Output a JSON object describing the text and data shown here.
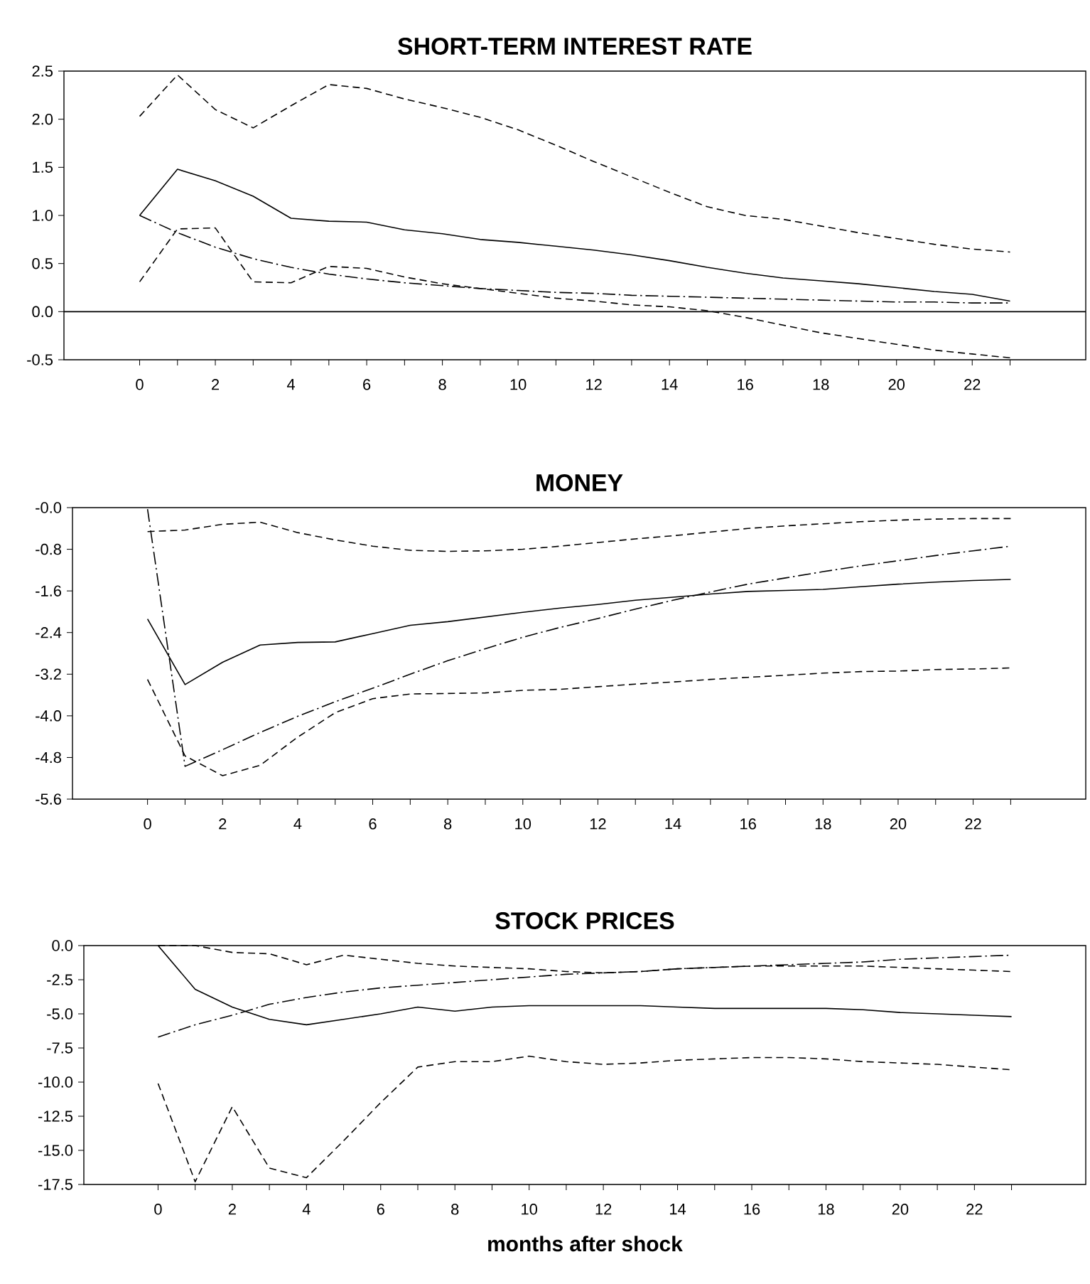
{
  "chart_data": [
    {
      "type": "line",
      "title": "SHORT-TERM INTEREST RATE",
      "x": [
        0,
        1,
        2,
        3,
        4,
        5,
        6,
        7,
        8,
        9,
        10,
        11,
        12,
        13,
        14,
        15,
        16,
        17,
        18,
        19,
        20,
        21,
        22,
        23
      ],
      "series": [
        {
          "color": "#000000",
          "line_style": "solid",
          "values": [
            1.0,
            1.48,
            1.36,
            1.2,
            0.97,
            0.94,
            0.93,
            0.85,
            0.81,
            0.75,
            0.72,
            0.68,
            0.64,
            0.59,
            0.53,
            0.46,
            0.4,
            0.35,
            0.32,
            0.29,
            0.25,
            0.21,
            0.18,
            0.11
          ]
        },
        {
          "color": "#000000",
          "line_style": "dashed",
          "values": [
            2.03,
            2.46,
            2.1,
            1.91,
            2.14,
            2.36,
            2.32,
            2.21,
            2.12,
            2.02,
            1.89,
            1.73,
            1.56,
            1.4,
            1.24,
            1.09,
            1.0,
            0.96,
            0.89,
            0.82,
            0.76,
            0.7,
            0.65,
            0.62
          ]
        },
        {
          "color": "#000000",
          "line_style": "dashed",
          "values": [
            0.31,
            0.86,
            0.87,
            0.31,
            0.3,
            0.47,
            0.45,
            0.36,
            0.29,
            0.24,
            0.19,
            0.14,
            0.11,
            0.07,
            0.05,
            0.01,
            -0.06,
            -0.14,
            -0.22,
            -0.28,
            -0.34,
            -0.4,
            -0.44,
            -0.48
          ]
        },
        {
          "color": "#000000",
          "line_style": "dashdot",
          "values": [
            1.0,
            0.82,
            0.67,
            0.55,
            0.46,
            0.39,
            0.34,
            0.3,
            0.27,
            0.24,
            0.22,
            0.2,
            0.19,
            0.17,
            0.16,
            0.15,
            0.14,
            0.13,
            0.12,
            0.11,
            0.1,
            0.1,
            0.09,
            0.09
          ]
        }
      ],
      "xlim": [
        -2,
        25
      ],
      "ylim": [
        -0.5,
        2.5
      ],
      "xticks": [
        0,
        {
          "value": 1,
          "label": null
        },
        2,
        {
          "value": 3,
          "label": null
        },
        4,
        {
          "value": 5,
          "label": null
        },
        6,
        {
          "value": 7,
          "label": null
        },
        8,
        {
          "value": 9,
          "label": null
        },
        10,
        {
          "value": 11,
          "label": null
        },
        12,
        {
          "value": 13,
          "label": null
        },
        14,
        {
          "value": 15,
          "label": null
        },
        16,
        {
          "value": 17,
          "label": null
        },
        18,
        {
          "value": 19,
          "label": null
        },
        20,
        {
          "value": 21,
          "label": null
        },
        22,
        {
          "value": 23,
          "label": null
        }
      ],
      "yticks": [
        {
          "value": -0.5,
          "label": "-0.5"
        },
        {
          "value": 0,
          "label": "0.0"
        },
        {
          "value": 0.5,
          "label": "0.5"
        },
        {
          "value": 1,
          "label": "1.0"
        },
        {
          "value": 1.5,
          "label": "1.5"
        },
        {
          "value": 2,
          "label": "2.0"
        },
        {
          "value": 2.5,
          "label": "2.5"
        }
      ],
      "ref_lines": [
        {
          "axis": "y",
          "value": 0,
          "label": null,
          "color": "#000000"
        }
      ]
    },
    {
      "type": "line",
      "title": "MONEY",
      "x": [
        0,
        1,
        2,
        3,
        4,
        5,
        6,
        7,
        8,
        9,
        10,
        11,
        12,
        13,
        14,
        15,
        16,
        17,
        18,
        19,
        20,
        21,
        22,
        23
      ],
      "series": [
        {
          "color": "#000000",
          "line_style": "solid",
          "values": [
            -2.14,
            -3.4,
            -2.97,
            -2.64,
            -2.59,
            -2.58,
            -2.42,
            -2.26,
            -2.19,
            -2.1,
            -2.01,
            -1.93,
            -1.86,
            -1.78,
            -1.72,
            -1.66,
            -1.61,
            -1.59,
            -1.57,
            -1.52,
            -1.47,
            -1.43,
            -1.4,
            -1.38
          ]
        },
        {
          "color": "#000000",
          "line_style": "dashed",
          "values": [
            -0.46,
            -0.43,
            -0.32,
            -0.28,
            -0.48,
            -0.62,
            -0.74,
            -0.82,
            -0.84,
            -0.83,
            -0.8,
            -0.74,
            -0.67,
            -0.6,
            -0.54,
            -0.47,
            -0.4,
            -0.35,
            -0.31,
            -0.27,
            -0.24,
            -0.22,
            -0.21,
            -0.21
          ]
        },
        {
          "color": "#000000",
          "line_style": "dashed",
          "values": [
            -3.3,
            -4.77,
            -5.15,
            -4.95,
            -4.41,
            -3.94,
            -3.67,
            -3.58,
            -3.57,
            -3.56,
            -3.51,
            -3.49,
            -3.44,
            -3.39,
            -3.35,
            -3.3,
            -3.26,
            -3.22,
            -3.18,
            -3.15,
            -3.14,
            -3.11,
            -3.1,
            -3.08
          ]
        },
        {
          "color": "#000000",
          "line_style": "dashdot",
          "values": [
            -0.03,
            -4.97,
            -4.65,
            -4.32,
            -4.01,
            -3.73,
            -3.47,
            -3.2,
            -2.94,
            -2.71,
            -2.49,
            -2.3,
            -2.13,
            -1.95,
            -1.78,
            -1.62,
            -1.47,
            -1.35,
            -1.23,
            -1.12,
            -1.02,
            -0.92,
            -0.83,
            -0.74
          ]
        }
      ],
      "xlim": [
        -2,
        25
      ],
      "ylim": [
        -5.6,
        0
      ],
      "xticks": [
        0,
        {
          "value": 1,
          "label": null
        },
        2,
        {
          "value": 3,
          "label": null
        },
        4,
        {
          "value": 5,
          "label": null
        },
        6,
        {
          "value": 7,
          "label": null
        },
        8,
        {
          "value": 9,
          "label": null
        },
        10,
        {
          "value": 11,
          "label": null
        },
        12,
        {
          "value": 13,
          "label": null
        },
        14,
        {
          "value": 15,
          "label": null
        },
        16,
        {
          "value": 17,
          "label": null
        },
        18,
        {
          "value": 19,
          "label": null
        },
        20,
        {
          "value": 21,
          "label": null
        },
        22,
        {
          "value": 23,
          "label": null
        }
      ],
      "yticks": [
        {
          "value": -5.6,
          "label": "-5.6"
        },
        {
          "value": -4.8,
          "label": "-4.8"
        },
        {
          "value": -4,
          "label": "-4.0"
        },
        {
          "value": -3.2,
          "label": "-3.2"
        },
        {
          "value": -2.4,
          "label": "-2.4"
        },
        {
          "value": -1.6,
          "label": "-1.6"
        },
        {
          "value": -0.8,
          "label": "-0.8"
        },
        {
          "value": 0,
          "label": "-0.0"
        }
      ]
    },
    {
      "type": "line",
      "title": "STOCK PRICES",
      "xlabel": "months after shock",
      "x": [
        0,
        1,
        2,
        3,
        4,
        5,
        6,
        7,
        8,
        9,
        10,
        11,
        12,
        13,
        14,
        15,
        16,
        17,
        18,
        19,
        20,
        21,
        22,
        23
      ],
      "series": [
        {
          "color": "#000000",
          "line_style": "solid",
          "values": [
            0.0,
            -3.2,
            -4.5,
            -5.4,
            -5.8,
            -5.4,
            -5.0,
            -4.5,
            -4.8,
            -4.5,
            -4.4,
            -4.4,
            -4.4,
            -4.4,
            -4.5,
            -4.6,
            -4.6,
            -4.6,
            -4.6,
            -4.7,
            -4.9,
            -5.0,
            -5.1,
            -5.2
          ]
        },
        {
          "color": "#000000",
          "line_style": "dashed",
          "values": [
            0.0,
            0.0,
            -0.5,
            -0.6,
            -1.4,
            -0.7,
            -1.0,
            -1.3,
            -1.5,
            -1.6,
            -1.7,
            -1.9,
            -2.0,
            -1.9,
            -1.7,
            -1.6,
            -1.5,
            -1.5,
            -1.5,
            -1.5,
            -1.6,
            -1.7,
            -1.8,
            -1.9
          ]
        },
        {
          "color": "#000000",
          "line_style": "dashed",
          "values": [
            -10.1,
            -17.3,
            -11.8,
            -16.3,
            -17.0,
            -14.3,
            -11.5,
            -8.9,
            -8.5,
            -8.5,
            -8.1,
            -8.5,
            -8.7,
            -8.6,
            -8.4,
            -8.3,
            -8.2,
            -8.2,
            -8.3,
            -8.5,
            -8.6,
            -8.7,
            -8.9,
            -9.1
          ]
        },
        {
          "color": "#000000",
          "line_style": "dashdot",
          "values": [
            -6.7,
            -5.8,
            -5.1,
            -4.3,
            -3.8,
            -3.4,
            -3.1,
            -2.9,
            -2.7,
            -2.5,
            -2.3,
            -2.1,
            -2.0,
            -1.9,
            -1.7,
            -1.6,
            -1.5,
            -1.4,
            -1.3,
            -1.2,
            -1.0,
            -0.9,
            -0.8,
            -0.7
          ]
        }
      ],
      "xlim": [
        -2,
        25
      ],
      "ylim": [
        -17.5,
        0
      ],
      "xticks": [
        0,
        {
          "value": 1,
          "label": null
        },
        2,
        {
          "value": 3,
          "label": null
        },
        4,
        {
          "value": 5,
          "label": null
        },
        6,
        {
          "value": 7,
          "label": null
        },
        8,
        {
          "value": 9,
          "label": null
        },
        10,
        {
          "value": 11,
          "label": null
        },
        12,
        {
          "value": 13,
          "label": null
        },
        14,
        {
          "value": 15,
          "label": null
        },
        16,
        {
          "value": 17,
          "label": null
        },
        18,
        {
          "value": 19,
          "label": null
        },
        20,
        {
          "value": 21,
          "label": null
        },
        22,
        {
          "value": 23,
          "label": null
        }
      ],
      "yticks": [
        {
          "value": -17.5,
          "label": "-17.5"
        },
        {
          "value": -15,
          "label": "-15.0"
        },
        {
          "value": -12.5,
          "label": "-12.5"
        },
        {
          "value": -10,
          "label": "-10.0"
        },
        {
          "value": -7.5,
          "label": "-7.5"
        },
        {
          "value": -5,
          "label": "-5.0"
        },
        {
          "value": -2.5,
          "label": "-2.5"
        },
        {
          "value": 0,
          "label": "0.0"
        }
      ]
    }
  ]
}
